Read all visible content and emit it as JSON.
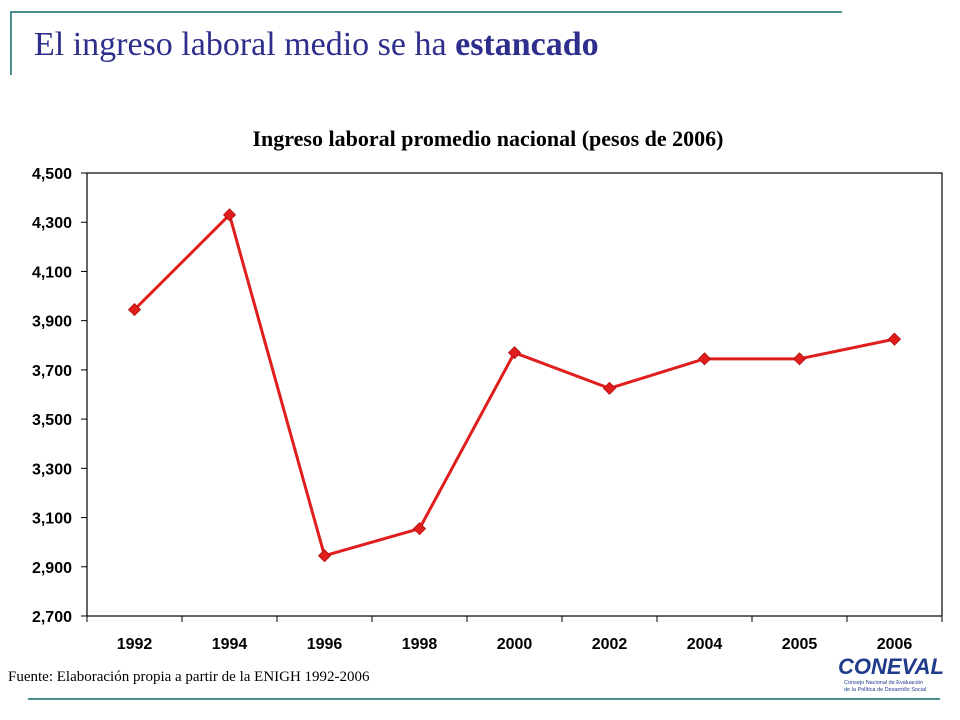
{
  "slide": {
    "title_prefix": "El ingreso laboral medio se ha ",
    "title_emphasis": "estancado",
    "source": "Fuente: Elaboración propia a partir de la ENIGH 1992-2006",
    "logo": {
      "word": "CONEVAL",
      "subtitle_line1": "Consejo Nacional de Evaluación",
      "subtitle_line2": "de la Política de Desarrollo Social"
    }
  },
  "colors": {
    "title": "#2e2e8c",
    "rules": "#4a8f8f",
    "series": "#e01e1e",
    "logo": "#1f3b8c"
  },
  "chart_data": {
    "type": "line",
    "title": "Ingreso laboral promedio nacional (pesos de 2006)",
    "xlabel": "",
    "ylabel": "",
    "categories": [
      "1992",
      "1994",
      "1996",
      "1998",
      "2000",
      "2002",
      "2004",
      "2005",
      "2006"
    ],
    "series": [
      {
        "values": [
          3945,
          4330,
          2945,
          3055,
          3770,
          3625,
          3745,
          3745,
          3825
        ],
        "marker": "diamond"
      }
    ],
    "ylim": [
      2700,
      4500
    ],
    "yticks": [
      2700,
      2900,
      3100,
      3300,
      3500,
      3700,
      3900,
      4100,
      4300,
      4500
    ],
    "ytick_labels": [
      "2,700",
      "2,900",
      "3,100",
      "3,300",
      "3,500",
      "3,700",
      "3,900",
      "4,100",
      "4,300",
      "4,500"
    ],
    "grid": false,
    "legend": "none"
  }
}
